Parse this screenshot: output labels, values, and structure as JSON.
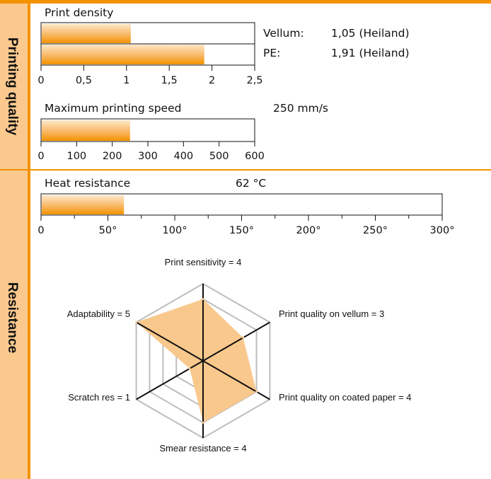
{
  "sections": {
    "printing_quality": "Printing quality",
    "resistance": "Resistance"
  },
  "colors": {
    "accent": "#f39200",
    "sidebar": "#fbc98e",
    "radar_fill": "#f9c88c",
    "grid": "#bdbdbd"
  },
  "chart_data": [
    {
      "type": "bar",
      "orientation": "horizontal",
      "title": "Print density",
      "categories": [
        "Vellum",
        "PE"
      ],
      "values": [
        1.05,
        1.91
      ],
      "value_labels": [
        {
          "name": "Vellum:",
          "value": "1,05 (Heiland)"
        },
        {
          "name": "PE:",
          "value": "1,91 (Heiland)"
        }
      ],
      "xlim": [
        0,
        2.5
      ],
      "ticks": [
        "0",
        "0,5",
        "1",
        "1,5",
        "2",
        "2,5"
      ]
    },
    {
      "type": "bar",
      "orientation": "horizontal",
      "title": "Maximum printing speed",
      "value_text": "250 mm/s",
      "values": [
        250
      ],
      "xlim": [
        0,
        600
      ],
      "ticks": [
        "0",
        "100",
        "200",
        "300",
        "400",
        "500",
        "600"
      ]
    },
    {
      "type": "bar",
      "orientation": "horizontal",
      "title": "Heat resistance",
      "value_text": "62 °C",
      "values": [
        62
      ],
      "xlim": [
        0,
        300
      ],
      "ticks": [
        "0",
        "50°",
        "100°",
        "150°",
        "200°",
        "250°",
        "300°"
      ]
    },
    {
      "type": "radar",
      "max": 5,
      "axes": [
        {
          "label": "Print sensitivity = 4",
          "value": 4
        },
        {
          "label": "Print quality on vellum = 3",
          "value": 3
        },
        {
          "label": "Print quality on coated paper = 4",
          "value": 4
        },
        {
          "label": "Smear resistance = 4",
          "value": 4
        },
        {
          "label": "Scratch res = 1",
          "value": 1
        },
        {
          "label": "Adaptability = 5",
          "value": 5
        }
      ]
    }
  ]
}
